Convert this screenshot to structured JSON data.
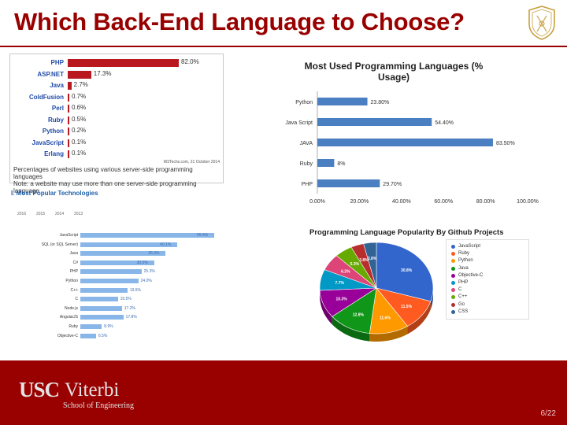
{
  "slide": {
    "title": "Which Back-End Language to Choose?",
    "page_number": "6/22",
    "logo": {
      "usc": "USC",
      "viterbi": "Viterbi",
      "school": "School of Engineering"
    }
  },
  "w3techs": {
    "rows": [
      {
        "label": "PHP",
        "value": "82.0%",
        "pct": 82.0
      },
      {
        "label": "ASP.NET",
        "value": "17.3%",
        "pct": 17.3
      },
      {
        "label": "Java",
        "value": "2.7%",
        "pct": 2.7
      },
      {
        "label": "ColdFusion",
        "value": "0.7%",
        "pct": 0.7
      },
      {
        "label": "Perl",
        "value": "0.6%",
        "pct": 0.6
      },
      {
        "label": "Ruby",
        "value": "0.5%",
        "pct": 0.5
      },
      {
        "label": "Python",
        "value": "0.2%",
        "pct": 0.2
      },
      {
        "label": "JavaScript",
        "value": "0.1%",
        "pct": 0.1
      },
      {
        "label": "Erlang",
        "value": "0.1%",
        "pct": 0.1
      }
    ],
    "credit": "W3Techs.com, 21 October 2014",
    "note_line1": "Percentages of websites using various server-side programming languages",
    "note_line2": "Note: a website may use more than one server-side programming language"
  },
  "stackoverflow": {
    "heading": "I. Most Popular Technologies",
    "tabs": [
      "2016",
      "2015",
      "2014",
      "2013"
    ],
    "rows": [
      {
        "label": "JavaScript",
        "value": "55.4%",
        "pct": 55.4
      },
      {
        "label": "SQL (or SQL Server)",
        "value": "40.1%",
        "pct": 40.1
      },
      {
        "label": "Java",
        "value": "35.3%",
        "pct": 35.3
      },
      {
        "label": "C#",
        "value": "30.5%",
        "pct": 30.5
      },
      {
        "label": "PHP",
        "value": "25.3%",
        "pct": 25.3
      },
      {
        "label": "Python",
        "value": "24.0%",
        "pct": 24.0
      },
      {
        "label": "C++",
        "value": "19.5%",
        "pct": 19.5
      },
      {
        "label": "C",
        "value": "15.5%",
        "pct": 15.5
      },
      {
        "label": "Node.js",
        "value": "17.2%",
        "pct": 17.2
      },
      {
        "label": "AngularJS",
        "value": "17.8%",
        "pct": 17.8
      },
      {
        "label": "Ruby",
        "value": "8.9%",
        "pct": 8.9
      },
      {
        "label": "Objective-C",
        "value": "6.5%",
        "pct": 6.5
      }
    ]
  },
  "chart_data": [
    {
      "type": "bar",
      "orientation": "horizontal",
      "title": "Most Used Programming Languages (% Usage)",
      "categories": [
        "Python",
        "Java Script",
        "JAVA",
        "Ruby",
        "PHP"
      ],
      "values": [
        23.8,
        54.4,
        83.5,
        8,
        29.7
      ],
      "value_labels": [
        "23.80%",
        "54.40%",
        "83.50%",
        "8%",
        "29.70%"
      ],
      "xlim": [
        0,
        100
      ],
      "x_ticks": [
        "0.00%",
        "20.00%",
        "40.00%",
        "60.00%",
        "80.00%",
        "100.00%"
      ],
      "color": "#4a7fc1",
      "grid": false
    },
    {
      "type": "pie",
      "title": "Programming Language Popularity By Github Projects",
      "labels": [
        "JavaScript",
        "Ruby",
        "Python",
        "Java",
        "Objective-C",
        "PHP",
        "C",
        "C++",
        "Go",
        "CSS"
      ],
      "values": [
        30.8,
        11.5,
        11.6,
        12.8,
        10.3,
        7.7,
        6.2,
        5.3,
        3.8,
        3.8
      ],
      "value_labels": [
        "30.8%",
        "11.5%",
        "11.6%",
        "12.8%",
        "10.3%",
        "7.7%",
        "6.2%",
        "5.3%",
        "3.8%",
        "3.8%"
      ],
      "colors": [
        "#3366cc",
        "#ff5a1f",
        "#ff9900",
        "#109618",
        "#990099",
        "#0099c6",
        "#dd4477",
        "#66aa00",
        "#b82e2e",
        "#316395"
      ],
      "legend": "right"
    }
  ]
}
